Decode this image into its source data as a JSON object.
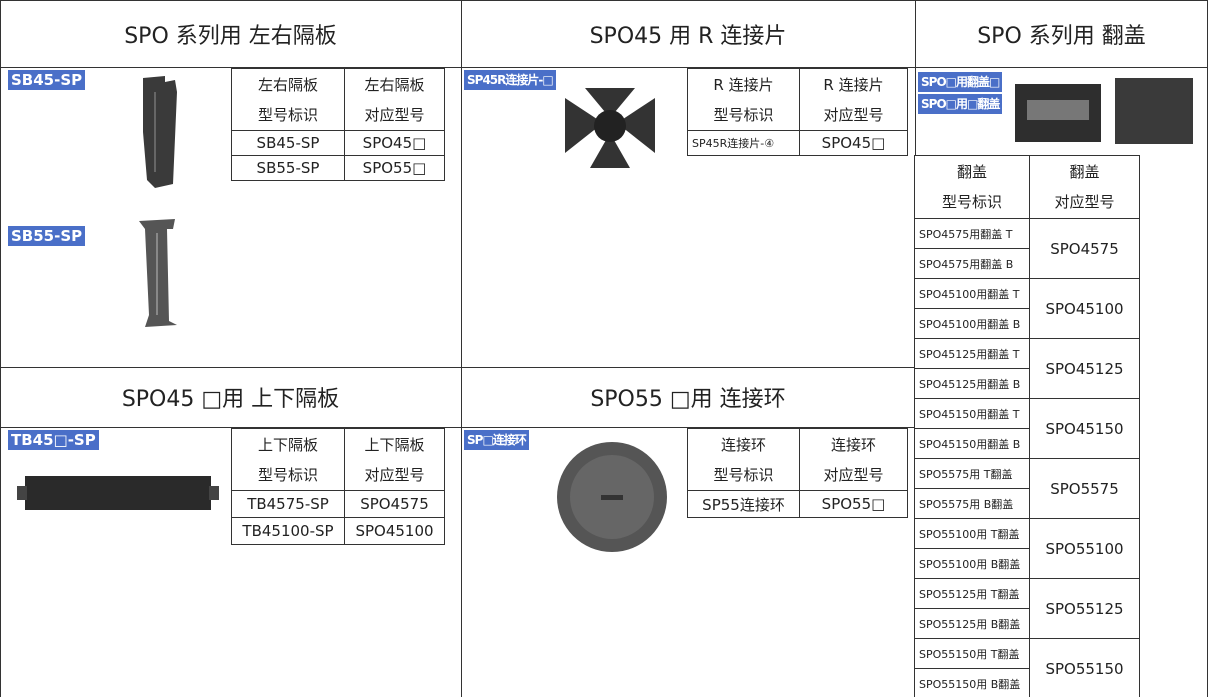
{
  "panels": [
    {
      "title": "SPO 系列用 左右隔板",
      "tags": [
        "SB45-SP",
        "SB55-SP"
      ],
      "head": [
        [
          "左右隔板",
          "型号标识"
        ],
        [
          "左右隔板",
          "对应型号"
        ]
      ],
      "rows": [
        [
          "SB45-SP",
          "SPO45□"
        ],
        [
          "SB55-SP",
          "SPO55□"
        ]
      ]
    },
    {
      "title": "SPO45 用 R 连接片",
      "tags": [
        "SP45R连接片-□"
      ],
      "head": [
        [
          "R 连接片",
          "型号标识"
        ],
        [
          "R 连接片",
          "对应型号"
        ]
      ],
      "rows": [
        [
          "SP45R连接片-④",
          "SPO45□"
        ]
      ]
    },
    {
      "title": "SPO45 □用 上下隔板",
      "tags": [
        "TB45□-SP"
      ],
      "head": [
        [
          "上下隔板",
          "型号标识"
        ],
        [
          "上下隔板",
          "对应型号"
        ]
      ],
      "rows": [
        [
          "TB4575-SP",
          "SPO4575"
        ],
        [
          "TB45100-SP",
          "SPO45100"
        ]
      ]
    },
    {
      "title": "SPO55 □用 连接环",
      "tags": [
        "SP□连接环"
      ],
      "head": [
        [
          "连接环",
          "型号标识"
        ],
        [
          "连接环",
          "对应型号"
        ]
      ],
      "rows": [
        [
          "SP55连接环",
          "SPO55□"
        ]
      ]
    }
  ],
  "covers": {
    "title": "SPO 系列用 翻盖",
    "tags": [
      "SPO□用翻盖□",
      "SPO□用□翻盖"
    ],
    "head": [
      [
        "翻盖",
        "型号标识"
      ],
      [
        "翻盖",
        "对应型号"
      ]
    ],
    "rows": [
      {
        "models": [
          "SPO4575用翻盖 T",
          "SPO4575用翻盖 B"
        ],
        "target": "SPO4575"
      },
      {
        "models": [
          "SPO45100用翻盖 T",
          "SPO45100用翻盖 B"
        ],
        "target": "SPO45100"
      },
      {
        "models": [
          "SPO45125用翻盖 T",
          "SPO45125用翻盖 B"
        ],
        "target": "SPO45125"
      },
      {
        "models": [
          "SPO45150用翻盖 T",
          "SPO45150用翻盖 B"
        ],
        "target": "SPO45150"
      },
      {
        "models": [
          "SPO5575用 T翻盖",
          "SPO5575用 B翻盖"
        ],
        "target": "SPO5575"
      },
      {
        "models": [
          "SPO55100用 T翻盖",
          "SPO55100用 B翻盖"
        ],
        "target": "SPO55100"
      },
      {
        "models": [
          "SPO55125用 T翻盖",
          "SPO55125用 B翻盖"
        ],
        "target": "SPO55125"
      },
      {
        "models": [
          "SPO55150用 T翻盖",
          "SPO55150用 B翻盖"
        ],
        "target": "SPO55150"
      }
    ]
  }
}
